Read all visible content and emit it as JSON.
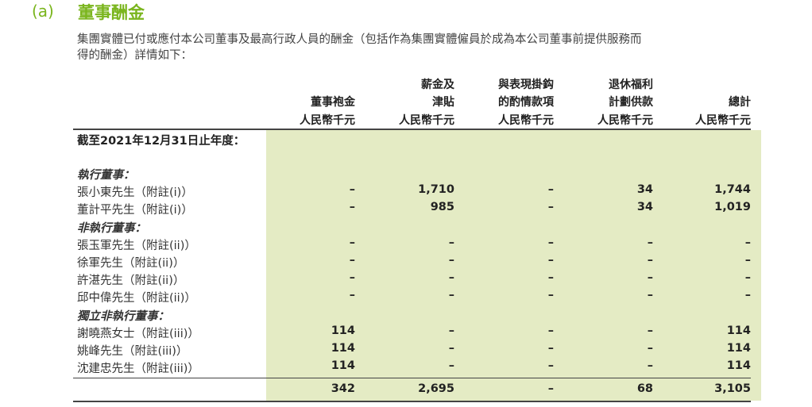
{
  "section": {
    "label": "(a)",
    "title": "董事酬金"
  },
  "intro": [
    "集團實體已付或應付本公司董事及最高行政人員的酬金（包括作為集團實體僱員於成為本公司董事前提供服務而",
    "得的酬金）詳情如下："
  ],
  "columns": [
    {
      "line1": "",
      "line2": "董事袍金",
      "unit": "人民幣千元"
    },
    {
      "line1": "薪金及",
      "line2": "津貼",
      "unit": "人民幣千元"
    },
    {
      "line1": "與表現掛鈎",
      "line2": "的酌情款項",
      "unit": "人民幣千元"
    },
    {
      "line1": "退休福利",
      "line2": "計劃供款",
      "unit": "人民幣千元"
    },
    {
      "line1": "",
      "line2": "總計",
      "unit": "人民幣千元"
    }
  ],
  "period": "截至2021年12月31日止年度：",
  "rows": [
    {
      "label": "執行董事：",
      "heading": true
    },
    {
      "label": "張小東先生（附註(i)）",
      "values": [
        "–",
        "1,710",
        "–",
        "34",
        "1,744"
      ]
    },
    {
      "label": "董計平先生（附註(i)）",
      "values": [
        "–",
        "985",
        "–",
        "34",
        "1,019"
      ]
    },
    {
      "label": "非執行董事：",
      "heading": true
    },
    {
      "label": "張玉軍先生（附註(ii)）",
      "values": [
        "–",
        "–",
        "–",
        "–",
        "–"
      ]
    },
    {
      "label": "徐軍先生（附註(ii)）",
      "values": [
        "–",
        "–",
        "–",
        "–",
        "–"
      ]
    },
    {
      "label": "許湛先生（附註(ii)）",
      "values": [
        "–",
        "–",
        "–",
        "–",
        "–"
      ]
    },
    {
      "label": "邱中偉先生（附註(ii)）",
      "values": [
        "–",
        "–",
        "–",
        "–",
        "–"
      ]
    },
    {
      "label": "獨立非執行董事：",
      "heading": true
    },
    {
      "label": "謝曉燕女士（附註(iii)）",
      "values": [
        "114",
        "–",
        "–",
        "–",
        "114"
      ]
    },
    {
      "label": "姚峰先生（附註(iii)）",
      "values": [
        "114",
        "–",
        "–",
        "–",
        "114"
      ]
    },
    {
      "label": "沈建忠先生（附註(iii)）",
      "values": [
        "114",
        "–",
        "–",
        "–",
        "114"
      ]
    }
  ],
  "total": [
    "342",
    "2,695",
    "–",
    "68",
    "3,105"
  ]
}
